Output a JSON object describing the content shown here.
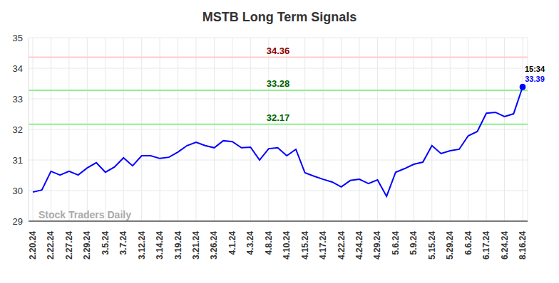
{
  "chart_data": {
    "type": "line",
    "title": "MSTB Long Term Signals",
    "watermark": "Stock Traders Daily",
    "annotation": "15:34",
    "categories": [
      "2.20.24",
      null,
      "2.22.24",
      null,
      "2.27.24",
      null,
      "2.29.24",
      null,
      "3.5.24",
      null,
      "3.7.24",
      null,
      "3.12.24",
      null,
      "3.14.24",
      null,
      "3.19.24",
      null,
      "3.21.24",
      null,
      "3.26.24",
      null,
      "4.1.24",
      null,
      "4.3.24",
      null,
      "4.8.24",
      null,
      "4.10.24",
      null,
      "4.15.24",
      null,
      "4.17.24",
      null,
      "4.22.24",
      null,
      "4.24.24",
      null,
      "4.29.24",
      null,
      "5.6.24",
      null,
      "5.9.24",
      null,
      "5.15.24",
      null,
      "5.29.24",
      null,
      "6.6.24",
      null,
      "6.17.24",
      null,
      "6.24.24",
      null,
      "8.16.24"
    ],
    "values": [
      29.95,
      30.02,
      30.63,
      30.51,
      30.63,
      30.51,
      30.74,
      30.91,
      30.6,
      30.77,
      31.07,
      30.81,
      31.14,
      31.14,
      31.05,
      31.09,
      31.26,
      31.47,
      31.58,
      31.47,
      31.4,
      31.63,
      31.6,
      31.4,
      31.42,
      31.0,
      31.37,
      31.4,
      31.14,
      31.35,
      30.58,
      30.47,
      30.37,
      30.28,
      30.12,
      30.33,
      30.37,
      30.23,
      30.35,
      29.81,
      30.6,
      30.72,
      30.86,
      30.93,
      31.47,
      31.21,
      31.3,
      31.35,
      31.79,
      31.93,
      32.53,
      32.56,
      32.42,
      32.51,
      33.39
    ],
    "color": "#0000ff",
    "ylim": [
      29,
      35
    ],
    "yticks": [
      29,
      30,
      31,
      32,
      33,
      34,
      35
    ],
    "grid": true,
    "reference_lines": [
      {
        "value": 34.36,
        "label": "34.36",
        "color": "#ffcccc"
      },
      {
        "value": 33.28,
        "label": "33.28",
        "color": "#90ee90"
      },
      {
        "value": 32.17,
        "label": "32.17",
        "color": "#90ee90"
      }
    ]
  }
}
